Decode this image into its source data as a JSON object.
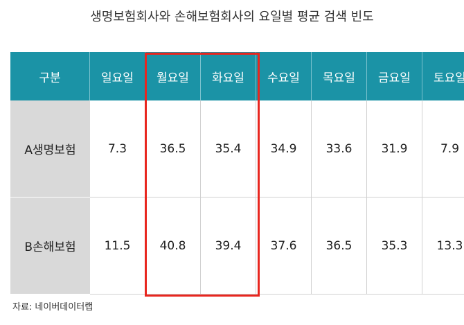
{
  "header": {
    "title": "생명보험회사와 손해보험회사의 요일별 평균 검색 빈도"
  },
  "table": {
    "columns": [
      "구분",
      "일요일",
      "월요일",
      "화요일",
      "수요일",
      "목요일",
      "금요일",
      "토요일"
    ],
    "rows": [
      [
        "A생명보험",
        "7.3",
        "36.5",
        "35.4",
        "34.9",
        "33.6",
        "31.9",
        "7.9"
      ],
      [
        "B손해보험",
        "11.5",
        "40.8",
        "39.4",
        "37.6",
        "36.5",
        "35.3",
        "13.3"
      ]
    ]
  },
  "footer": {
    "source": "자료: 네이버데이터랩"
  }
}
